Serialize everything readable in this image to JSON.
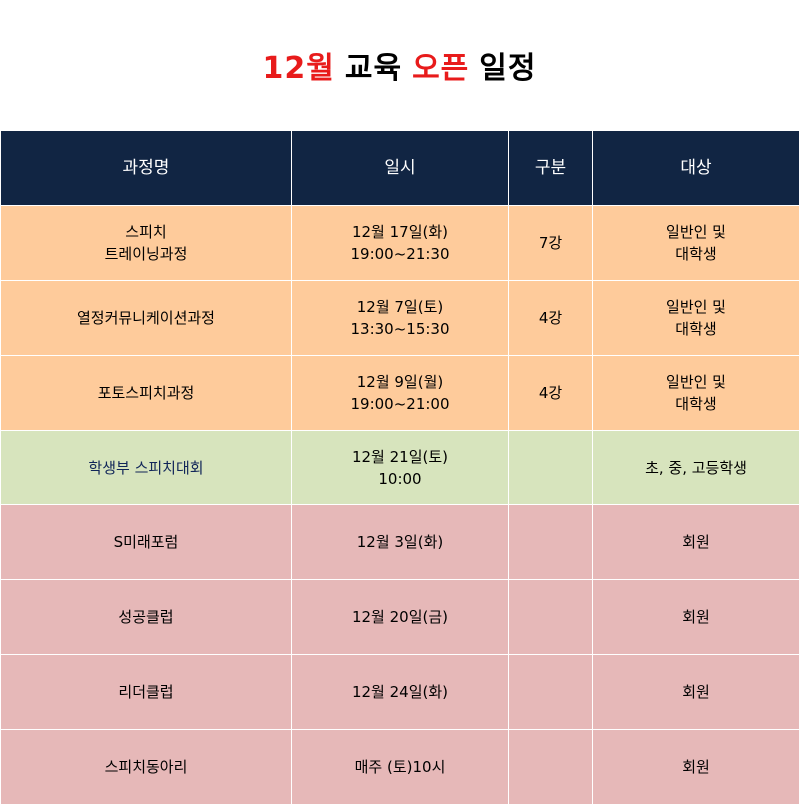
{
  "title": {
    "part1": "12월",
    "part2": "교육",
    "part3": "오픈",
    "part4": "일정"
  },
  "headers": {
    "course": "과정명",
    "datetime": "일시",
    "type": "구분",
    "target": "대상"
  },
  "rows": [
    {
      "course_line1": "스피치",
      "course_line2": "트레이닝과정",
      "date_line1": "12월 17일(화)",
      "date_line2": "19:00~21:30",
      "type": "7강",
      "target_line1": "일반인 및",
      "target_line2": "대학생"
    },
    {
      "course_line1": "열정커뮤니케이션과정",
      "course_line2": "",
      "date_line1": "12월 7일(토)",
      "date_line2": "13:30~15:30",
      "type": "4강",
      "target_line1": "일반인 및",
      "target_line2": "대학생"
    },
    {
      "course_line1": "포토스피치과정",
      "course_line2": "",
      "date_line1": "12월 9일(월)",
      "date_line2": "19:00~21:00",
      "type": "4강",
      "target_line1": "일반인 및",
      "target_line2": "대학생"
    },
    {
      "course_line1": "학생부 스피치대회",
      "course_line2": "",
      "date_line1": "12월 21일(토)",
      "date_line2": "10:00",
      "type": "",
      "target_line1": "초, 중, 고등학생",
      "target_line2": ""
    },
    {
      "course_line1": "S미래포럼",
      "course_line2": "",
      "date_line1": "12월 3일(화)",
      "date_line2": "",
      "type": "",
      "target_line1": "회원",
      "target_line2": ""
    },
    {
      "course_line1": "성공클럽",
      "course_line2": "",
      "date_line1": "12월 20일(금)",
      "date_line2": "",
      "type": "",
      "target_line1": "회원",
      "target_line2": ""
    },
    {
      "course_line1": "리더클럽",
      "course_line2": "",
      "date_line1": "12월 24일(화)",
      "date_line2": "",
      "type": "",
      "target_line1": "회원",
      "target_line2": ""
    },
    {
      "course_line1": "스피치동아리",
      "course_line2": "",
      "date_line1": "매주 (토)10시",
      "date_line2": "",
      "type": "",
      "target_line1": "회원",
      "target_line2": ""
    }
  ],
  "colors": {
    "header_bg": "#112543",
    "orange_rows": "#fecb9b",
    "green_row": "#d7e4bd",
    "pink_rows": "#e6b8b8",
    "title_accent": "#e81b1b"
  }
}
